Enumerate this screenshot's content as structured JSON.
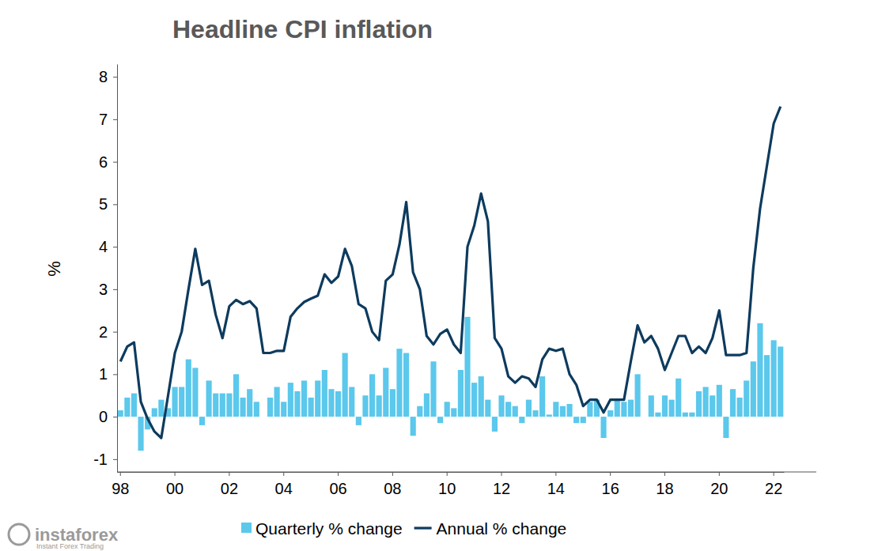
{
  "chart_data": {
    "type": "bar",
    "title": "Headline CPI inflation",
    "y_label": "%",
    "annotations": [
      "instaforex",
      "Instant Forex Trading"
    ],
    "categories": [
      "98",
      null,
      null,
      null,
      null,
      null,
      null,
      null,
      "00",
      null,
      null,
      null,
      null,
      null,
      null,
      null,
      "02",
      null,
      null,
      null,
      null,
      null,
      null,
      null,
      "04",
      null,
      null,
      null,
      null,
      null,
      null,
      null,
      "06",
      null,
      null,
      null,
      null,
      null,
      null,
      null,
      "08",
      null,
      null,
      null,
      null,
      null,
      null,
      null,
      "10",
      null,
      null,
      null,
      null,
      null,
      null,
      null,
      "12",
      null,
      null,
      null,
      null,
      null,
      null,
      null,
      "14",
      null,
      null,
      null,
      null,
      null,
      null,
      null,
      "16",
      null,
      null,
      null,
      null,
      null,
      null,
      null,
      "18",
      null,
      null,
      null,
      null,
      null,
      null,
      null,
      "20",
      null,
      null,
      null,
      null,
      null,
      null,
      null,
      "22",
      null
    ],
    "series": [
      {
        "name": "Quarterly % change",
        "type": "bar",
        "color": "#5bc8ec",
        "values": [
          0.15,
          0.45,
          0.55,
          -0.8,
          -0.3,
          0.2,
          0.4,
          0.2,
          0.7,
          0.7,
          1.35,
          1.15,
          -0.2,
          0.85,
          0.55,
          0.55,
          0.55,
          1.0,
          0.45,
          0.65,
          0.35,
          0,
          0.45,
          0.7,
          0.35,
          0.8,
          0.6,
          0.85,
          0.45,
          0.85,
          1.1,
          0.65,
          0.6,
          1.5,
          0.7,
          -0.2,
          0.5,
          1.0,
          0.5,
          1.15,
          0.65,
          1.6,
          1.5,
          -0.45,
          0.25,
          0.55,
          1.3,
          -0.15,
          0.35,
          0.2,
          1.1,
          2.35,
          0.8,
          0.95,
          0.4,
          -0.35,
          0.5,
          0.35,
          0.25,
          -0.15,
          0.4,
          0.15,
          0.95,
          0.05,
          0.35,
          0.25,
          0.3,
          -0.15,
          -0.15,
          0.35,
          0.4,
          -0.5,
          0.15,
          0.4,
          0.35,
          0.4,
          1.0,
          0,
          0.5,
          0.1,
          0.5,
          0.4,
          0.9,
          0.1,
          0.1,
          0.6,
          0.7,
          0.5,
          0.75,
          -0.5,
          0.65,
          0.45,
          0.85,
          1.3,
          2.2,
          1.45,
          1.8,
          1.65
        ]
      },
      {
        "name": "Annual % change",
        "type": "line",
        "color": "#0d3b5e",
        "values": [
          1.3,
          1.65,
          1.75,
          0.35,
          -0.05,
          -0.35,
          -0.5,
          0.5,
          1.5,
          2.0,
          3.0,
          3.95,
          3.1,
          3.2,
          2.4,
          1.85,
          2.6,
          2.75,
          2.65,
          2.72,
          2.55,
          1.5,
          1.5,
          1.55,
          1.55,
          2.35,
          2.55,
          2.7,
          2.78,
          2.85,
          3.35,
          3.15,
          3.3,
          3.95,
          3.55,
          2.65,
          2.55,
          2.0,
          1.8,
          3.2,
          3.35,
          4.05,
          5.05,
          3.4,
          3.0,
          1.9,
          1.7,
          1.95,
          2.05,
          1.7,
          1.5,
          4.0,
          4.5,
          5.25,
          4.6,
          1.85,
          1.6,
          0.95,
          0.8,
          0.95,
          0.9,
          0.7,
          1.35,
          1.6,
          1.55,
          1.6,
          1.0,
          0.75,
          0.25,
          0.4,
          0.4,
          0.1,
          0.4,
          0.4,
          0.4,
          1.3,
          2.15,
          1.75,
          1.9,
          1.6,
          1.1,
          1.5,
          1.9,
          1.9,
          1.5,
          1.65,
          1.5,
          1.85,
          2.5,
          1.45,
          1.45,
          1.45,
          1.5,
          3.5,
          4.9,
          5.9,
          6.9,
          7.3
        ]
      }
    ],
    "ylim": [
      -1.3,
      8.3
    ],
    "yticks": [
      -1,
      0,
      1,
      2,
      3,
      4,
      5,
      6,
      7,
      8
    ],
    "grid": false,
    "legend": "bottom"
  }
}
